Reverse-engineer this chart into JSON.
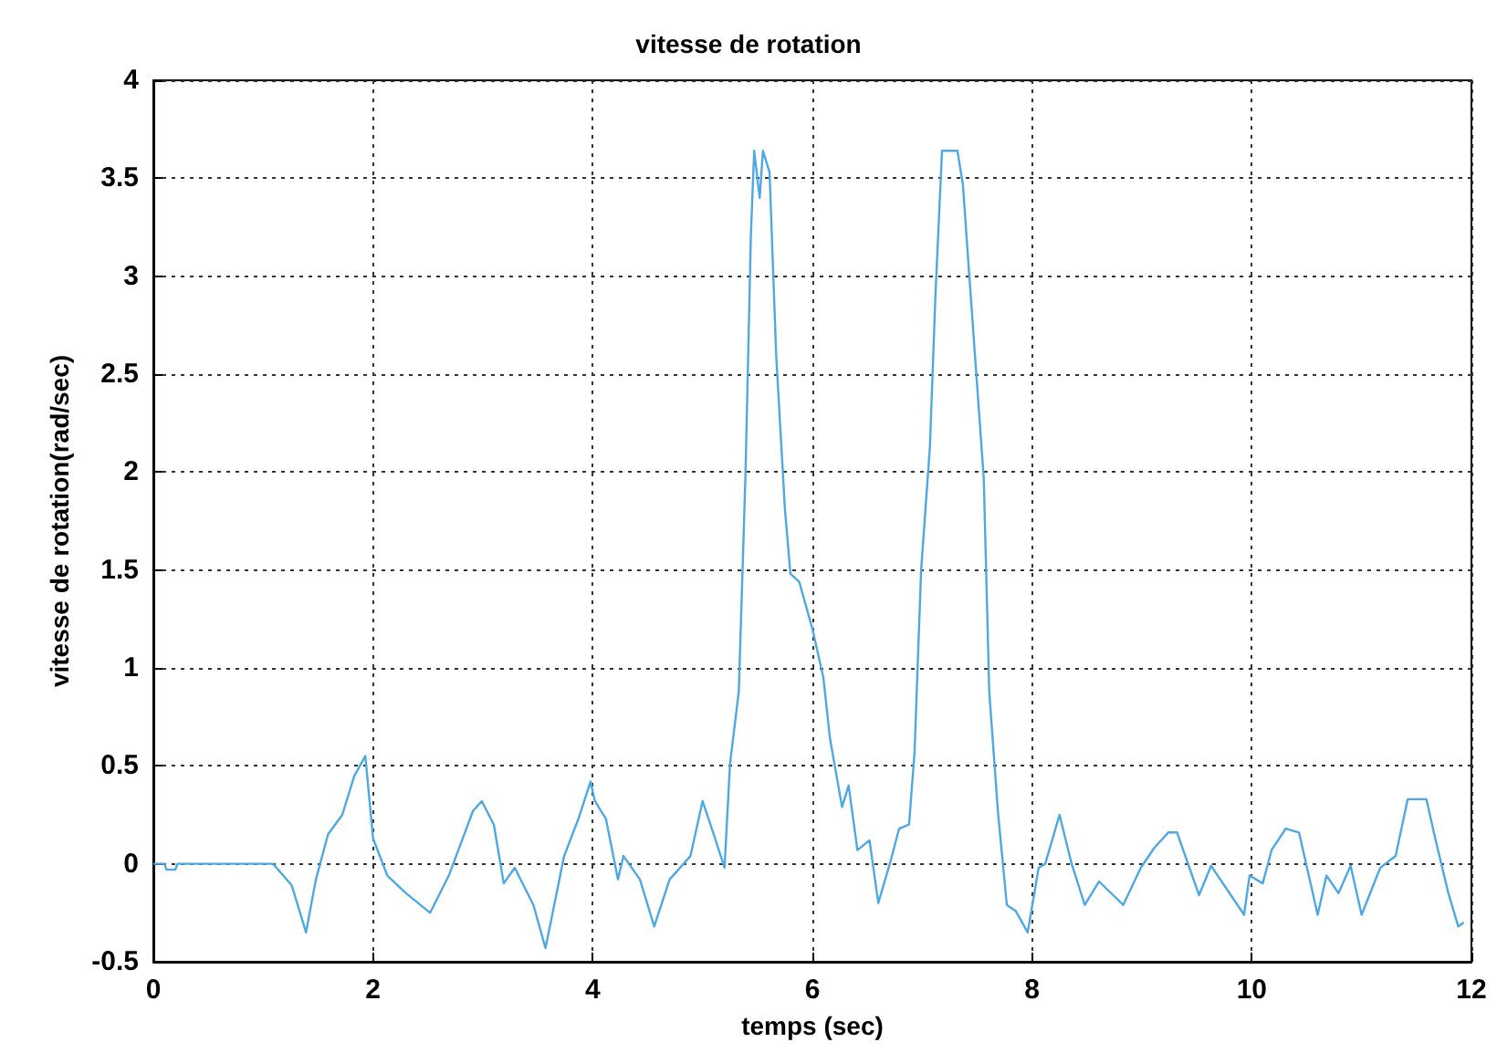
{
  "chart_data": {
    "type": "line",
    "title": "vitesse de rotation",
    "xlabel": "temps (sec)",
    "ylabel": "vitesse de rotation(rad/sec)",
    "xlim": [
      0,
      12
    ],
    "xticks": [
      0,
      2,
      4,
      6,
      8,
      10,
      12
    ],
    "ylim": [
      -0.5,
      4
    ],
    "yticks": [
      -0.5,
      0,
      0.5,
      1,
      1.5,
      2,
      2.5,
      3,
      3.5,
      4
    ],
    "grid": true,
    "line_style": "solid",
    "marker": "none",
    "series": [
      {
        "color": "#4fa8e0",
        "x": [
          0,
          0.1,
          0.12,
          0.2,
          0.22,
          1.09,
          1.26,
          1.39,
          1.48,
          1.59,
          1.72,
          1.83,
          1.93,
          2.0,
          2.13,
          2.3,
          2.52,
          2.69,
          2.91,
          2.99,
          3.1,
          3.19,
          3.29,
          3.46,
          3.57,
          3.74,
          3.87,
          3.98,
          4.02,
          4.12,
          4.23,
          4.28,
          4.43,
          4.56,
          4.7,
          4.89,
          5.0,
          5.09,
          5.2,
          5.25,
          5.33,
          5.39,
          5.44,
          5.47,
          5.52,
          5.55,
          5.61,
          5.67,
          5.75,
          5.8,
          5.88,
          6.0,
          6.1,
          6.16,
          6.27,
          6.33,
          6.41,
          6.52,
          6.6,
          6.71,
          6.79,
          6.88,
          6.93,
          6.99,
          7.07,
          7.12,
          7.18,
          7.32,
          7.37,
          7.42,
          7.5,
          7.56,
          7.61,
          7.69,
          7.77,
          7.85,
          7.96,
          8.06,
          8.12,
          8.25,
          8.36,
          8.48,
          8.61,
          8.83,
          8.99,
          9.11,
          9.24,
          9.32,
          9.52,
          9.63,
          9.93,
          9.98,
          10.1,
          10.18,
          10.31,
          10.43,
          10.6,
          10.68,
          10.79,
          10.9,
          11.0,
          11.17,
          11.31,
          11.42,
          11.59,
          11.67,
          11.79,
          11.88,
          11.93
        ],
        "values": [
          0,
          0,
          -0.03,
          -0.03,
          0,
          0,
          -0.11,
          -0.35,
          -0.08,
          0.15,
          0.25,
          0.45,
          0.55,
          0.13,
          -0.06,
          -0.15,
          -0.25,
          -0.06,
          0.27,
          0.32,
          0.2,
          -0.1,
          -0.02,
          -0.21,
          -0.43,
          0.04,
          0.23,
          0.42,
          0.32,
          0.23,
          -0.08,
          0.04,
          -0.08,
          -0.32,
          -0.08,
          0.04,
          0.32,
          0.17,
          -0.02,
          0.51,
          0.88,
          1.97,
          3.21,
          3.64,
          3.4,
          3.64,
          3.53,
          2.6,
          1.81,
          1.48,
          1.44,
          1.2,
          0.95,
          0.64,
          0.29,
          0.4,
          0.07,
          0.12,
          -0.2,
          0.01,
          0.18,
          0.2,
          0.57,
          1.5,
          2.13,
          2.9,
          3.64,
          3.64,
          3.47,
          3.07,
          2.44,
          1.97,
          0.88,
          0.26,
          -0.21,
          -0.24,
          -0.35,
          -0.02,
          0.0,
          0.25,
          0,
          -0.21,
          -0.09,
          -0.21,
          -0.02,
          0.08,
          0.16,
          0.16,
          -0.16,
          -0.01,
          -0.26,
          -0.06,
          -0.1,
          0.07,
          0.18,
          0.16,
          -0.26,
          -0.06,
          -0.15,
          -0.01,
          -0.26,
          -0.02,
          0.04,
          0.33,
          0.33,
          0.13,
          -0.15,
          -0.32,
          -0.3
        ]
      }
    ]
  }
}
